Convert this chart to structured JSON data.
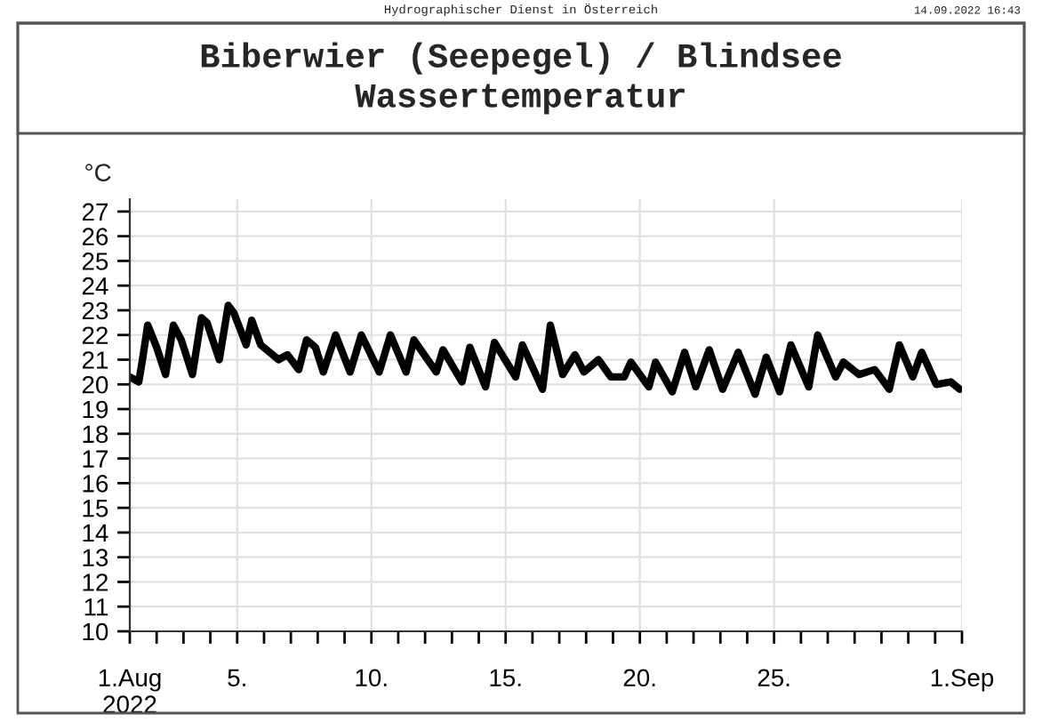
{
  "chart_data": {
    "type": "line",
    "title": "Biberwier (Seepegel) / Blindsee\nWassertemperatur",
    "ylabel": "°C",
    "annotations": [
      "Hydrographischer Dienst in Österreich",
      "14.09.2022 16:43"
    ],
    "x": [
      "2022-08-01T00:00",
      "2022-08-01T08:00",
      "2022-08-01T11:00",
      "2022-08-01T16:00",
      "2022-08-02T00:00",
      "2022-08-02T08:00",
      "2022-08-02T15:00",
      "2022-08-02T22:00",
      "2022-08-03T08:00",
      "2022-08-03T16:00",
      "2022-08-03T21:00",
      "2022-08-04T08:00",
      "2022-08-04T16:00",
      "2022-08-04T21:00",
      "2022-08-05T08:00",
      "2022-08-05T13:00",
      "2022-08-05T21:00",
      "2022-08-06T13:00",
      "2022-08-06T21:00",
      "2022-08-07T07:00",
      "2022-08-07T14:00",
      "2022-08-07T22:00",
      "2022-08-08T05:00",
      "2022-08-08T16:00",
      "2022-08-09T05:00",
      "2022-08-09T15:00",
      "2022-08-10T07:00",
      "2022-08-10T17:00",
      "2022-08-11T07:00",
      "2022-08-11T14:00",
      "2022-08-12T10:00",
      "2022-08-12T16:00",
      "2022-08-13T09:00",
      "2022-08-13T16:00",
      "2022-08-14T06:00",
      "2022-08-14T14:00",
      "2022-08-15T09:00",
      "2022-08-15T15:00",
      "2022-08-16T09:00",
      "2022-08-16T16:00",
      "2022-08-17T03:00",
      "2022-08-17T14:00",
      "2022-08-17T22:00",
      "2022-08-18T11:00",
      "2022-08-18T22:00",
      "2022-08-19T10:00",
      "2022-08-19T16:00",
      "2022-08-20T08:00",
      "2022-08-20T14:00",
      "2022-08-21T05:00",
      "2022-08-21T16:00",
      "2022-08-22T02:00",
      "2022-08-22T14:00",
      "2022-08-23T02:00",
      "2022-08-23T16:00",
      "2022-08-24T07:00",
      "2022-08-24T17:00",
      "2022-08-25T05:00",
      "2022-08-25T15:00",
      "2022-08-26T07:00",
      "2022-08-26T15:00",
      "2022-08-27T07:00",
      "2022-08-27T14:00",
      "2022-08-28T04:00",
      "2022-08-28T18:00",
      "2022-08-29T07:00",
      "2022-08-29T16:00",
      "2022-08-30T04:00",
      "2022-08-30T12:00",
      "2022-08-31T01:00",
      "2022-08-31T14:00",
      "2022-08-31T22:00"
    ],
    "series": [
      {
        "color": "#000000",
        "values": [
          20.3,
          20.1,
          20.9,
          22.4,
          21.5,
          20.4,
          22.4,
          21.8,
          20.4,
          22.7,
          22.5,
          21.0,
          23.2,
          22.9,
          21.6,
          22.6,
          21.6,
          21.0,
          21.2,
          20.6,
          21.8,
          21.5,
          20.5,
          22.0,
          20.5,
          22.0,
          20.5,
          22.0,
          20.5,
          21.8,
          20.5,
          21.4,
          20.1,
          21.5,
          19.9,
          21.7,
          20.3,
          21.6,
          19.8,
          22.4,
          20.4,
          21.2,
          20.5,
          21.0,
          20.3,
          20.3,
          20.9,
          19.9,
          20.9,
          19.7,
          21.3,
          19.9,
          21.4,
          19.8,
          21.3,
          19.6,
          21.1,
          19.7,
          21.6,
          19.9,
          22.0,
          20.3,
          20.9,
          20.4,
          20.6,
          19.8,
          21.6,
          20.3,
          21.3,
          20.0,
          20.1,
          19.8
        ]
      }
    ],
    "xlim": [
      "2022-08-01",
      "2022-09-01"
    ],
    "xticks": [
      {
        "value": "2022-08-01",
        "label": "1.Aug\n2022"
      },
      {
        "value": "2022-08-02",
        "label": null
      },
      {
        "value": "2022-08-03",
        "label": null
      },
      {
        "value": "2022-08-04",
        "label": null
      },
      {
        "value": "2022-08-05",
        "label": "5."
      },
      {
        "value": "2022-08-06",
        "label": null
      },
      {
        "value": "2022-08-07",
        "label": null
      },
      {
        "value": "2022-08-08",
        "label": null
      },
      {
        "value": "2022-08-09",
        "label": null
      },
      {
        "value": "2022-08-10",
        "label": "10."
      },
      {
        "value": "2022-08-11",
        "label": null
      },
      {
        "value": "2022-08-12",
        "label": null
      },
      {
        "value": "2022-08-13",
        "label": null
      },
      {
        "value": "2022-08-14",
        "label": null
      },
      {
        "value": "2022-08-15",
        "label": "15."
      },
      {
        "value": "2022-08-16",
        "label": null
      },
      {
        "value": "2022-08-17",
        "label": null
      },
      {
        "value": "2022-08-18",
        "label": null
      },
      {
        "value": "2022-08-19",
        "label": null
      },
      {
        "value": "2022-08-20",
        "label": "20."
      },
      {
        "value": "2022-08-21",
        "label": null
      },
      {
        "value": "2022-08-22",
        "label": null
      },
      {
        "value": "2022-08-23",
        "label": null
      },
      {
        "value": "2022-08-24",
        "label": null
      },
      {
        "value": "2022-08-25",
        "label": "25."
      },
      {
        "value": "2022-08-26",
        "label": null
      },
      {
        "value": "2022-08-27",
        "label": null
      },
      {
        "value": "2022-08-28",
        "label": null
      },
      {
        "value": "2022-08-29",
        "label": null
      },
      {
        "value": "2022-08-30",
        "label": null
      },
      {
        "value": "2022-08-31",
        "label": null
      },
      {
        "value": "2022-09-01",
        "label": "1.Sep"
      }
    ],
    "ylim": [
      10,
      27.5
    ],
    "yticks": [
      10,
      11,
      12,
      13,
      14,
      15,
      16,
      17,
      18,
      19,
      20,
      21,
      22,
      23,
      24,
      25,
      26,
      27
    ],
    "grid": true,
    "legend": false,
    "marker": "none",
    "line_style": "solid"
  }
}
